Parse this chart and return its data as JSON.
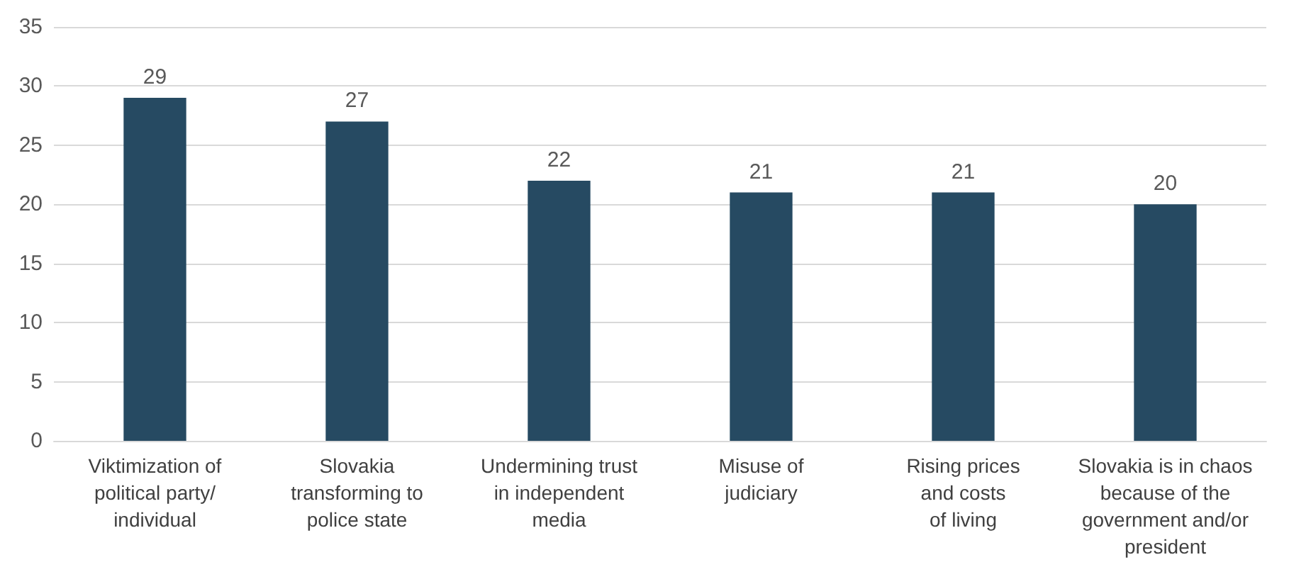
{
  "chart_data": {
    "type": "bar",
    "categories": [
      "Viktimization of\npolitical party/\nindividual",
      "Slovakia\ntransforming to\npolice state",
      "Undermining trust\nin independent\nmedia",
      "Misuse of\njudiciary",
      "Rising prices\nand costs\nof living",
      "Slovakia is in chaos\nbecause of the\ngovernment and/or\npresident"
    ],
    "values": [
      29,
      27,
      22,
      21,
      21,
      20
    ],
    "color": "#264a62",
    "ylim": [
      0,
      35
    ],
    "yticks": [
      0,
      5,
      10,
      15,
      20,
      25,
      30,
      35
    ],
    "grid": "y",
    "data_labels": true
  }
}
